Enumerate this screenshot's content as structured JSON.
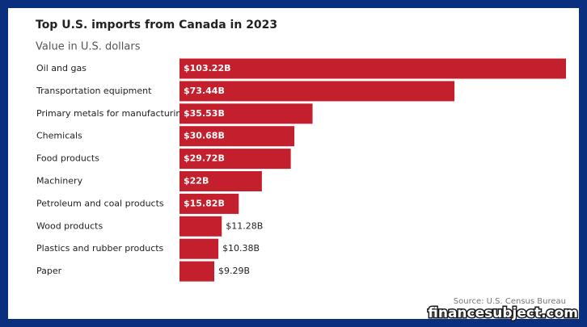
{
  "chart_data": {
    "type": "bar",
    "orientation": "horizontal",
    "title": "Top U.S. imports from Canada in 2023",
    "subtitle": "Value in U.S. dollars",
    "categories": [
      "Oil and gas",
      "Transportation equipment",
      "Primary metals for manufacturing",
      "Chemicals",
      "Food products",
      "Machinery",
      "Petroleum and coal products",
      "Wood products",
      "Plastics and rubber products",
      "Paper"
    ],
    "values": [
      103.22,
      73.44,
      35.53,
      30.68,
      29.72,
      22,
      15.82,
      11.28,
      10.38,
      9.29
    ],
    "value_labels": [
      "$103.22B",
      "$73.44B",
      "$35.53B",
      "$30.68B",
      "$29.72B",
      "$22B",
      "$15.82B",
      "$11.28B",
      "$10.38B",
      "$9.29B"
    ],
    "color": "#c41f2c",
    "source": "Source: U.S. Census Bureau",
    "watermark": "financesubject.com"
  }
}
